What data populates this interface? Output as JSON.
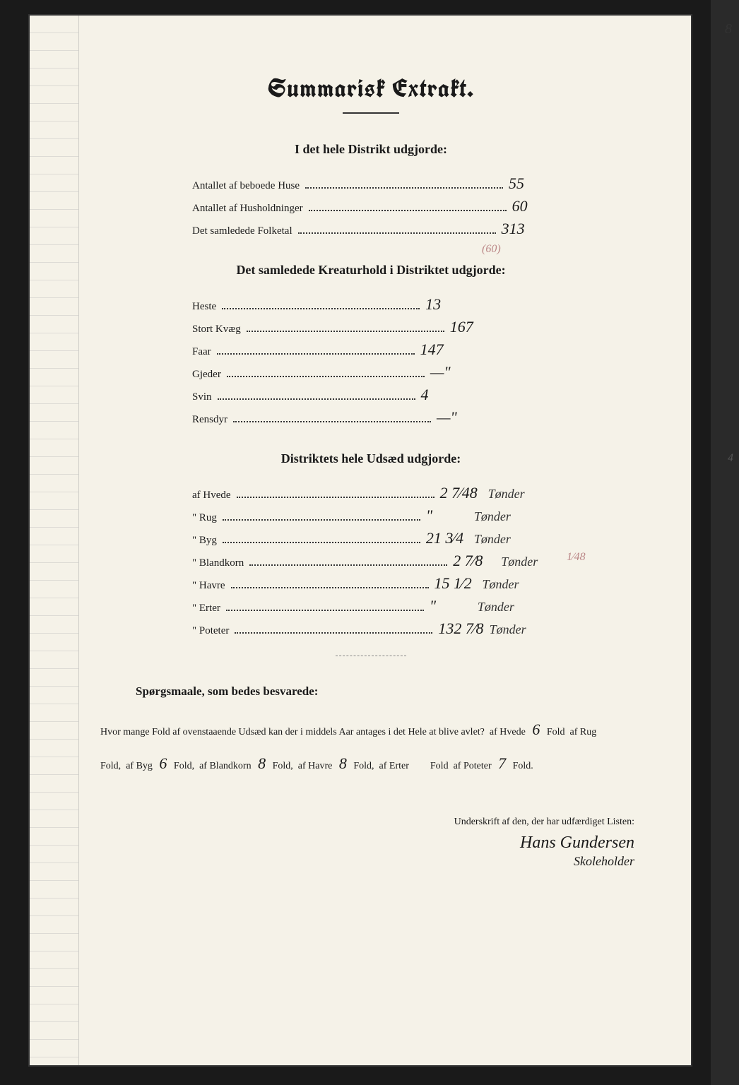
{
  "title": "Summarisk Extrakt.",
  "colors": {
    "paper": "#f5f2e8",
    "ink": "#1a1a1a",
    "frame": "#1a1a1a",
    "margin_line": "#999999",
    "annotation": "#bb8888"
  },
  "fonts": {
    "title_family": "blackletter",
    "title_size_pt": 28,
    "body_size_pt": 12,
    "handwriting_family": "cursive",
    "handwriting_size_pt": 18
  },
  "section1": {
    "heading": "I det hele Distrikt udgjorde:",
    "rows": [
      {
        "label": "Antallet af beboede Huse",
        "value": "55"
      },
      {
        "label": "Antallet af Husholdninger",
        "value": "60",
        "annotation": "(60)"
      },
      {
        "label": "Det samledede Folketal",
        "value": "313"
      }
    ]
  },
  "section2": {
    "heading": "Det samledede Kreaturhold i Distriktet udgjorde:",
    "rows": [
      {
        "label": "Heste",
        "value": "13"
      },
      {
        "label": "Stort Kvæg",
        "value": "167"
      },
      {
        "label": "Faar",
        "value": "147"
      },
      {
        "label": "Gjeder",
        "value": "—\""
      },
      {
        "label": "Svin",
        "value": "4"
      },
      {
        "label": "Rensdyr",
        "value": "—\""
      }
    ]
  },
  "section3": {
    "heading": "Distriktets hele Udsæd udgjorde:",
    "rows": [
      {
        "label": "af Hvede",
        "value": "2 7⁄48",
        "unit": "Tønder"
      },
      {
        "label": "\"  Rug",
        "value": "\"",
        "unit": "Tønder"
      },
      {
        "label": "\"  Byg",
        "value": "21 3⁄4",
        "unit": "Tønder",
        "annotation": "1⁄48"
      },
      {
        "label": "\"  Blandkorn",
        "value": "2 7⁄8",
        "unit": "Tønder"
      },
      {
        "label": "\"  Havre",
        "value": "15 1⁄2",
        "unit": "Tønder"
      },
      {
        "label": "\"  Erter",
        "value": "\"",
        "unit": "Tønder"
      },
      {
        "label": "\"  Poteter",
        "value": "132 7⁄8",
        "unit": "Tønder"
      }
    ]
  },
  "questions": {
    "heading": "Spørgsmaale, som bedes besvarede:",
    "lead": "Hvor mange Fold af ovenstaaende Udsæd kan der i middels Aar antages i det Hele at blive avlet?",
    "items": [
      {
        "label": "af Hvede",
        "value": "6",
        "suffix": "Fold"
      },
      {
        "label": "af Rug",
        "value": "",
        "suffix": "Fold,"
      },
      {
        "label": "af Byg",
        "value": "6",
        "suffix": "Fold,"
      },
      {
        "label": "af Blandkorn",
        "value": "8",
        "suffix": "Fold,"
      },
      {
        "label": "af Havre",
        "value": "8",
        "suffix": "Fold,"
      },
      {
        "label": "af Erter",
        "value": "",
        "suffix": "Fold"
      },
      {
        "label": "af Poteter",
        "value": "7",
        "suffix": "Fold."
      }
    ]
  },
  "signature": {
    "label": "Underskrift af den, der har udfærdiget Listen:",
    "name": "Hans Gundersen",
    "title": "Skoleholder"
  },
  "page_marks": {
    "top_right": "8",
    "right_mid": "4"
  }
}
